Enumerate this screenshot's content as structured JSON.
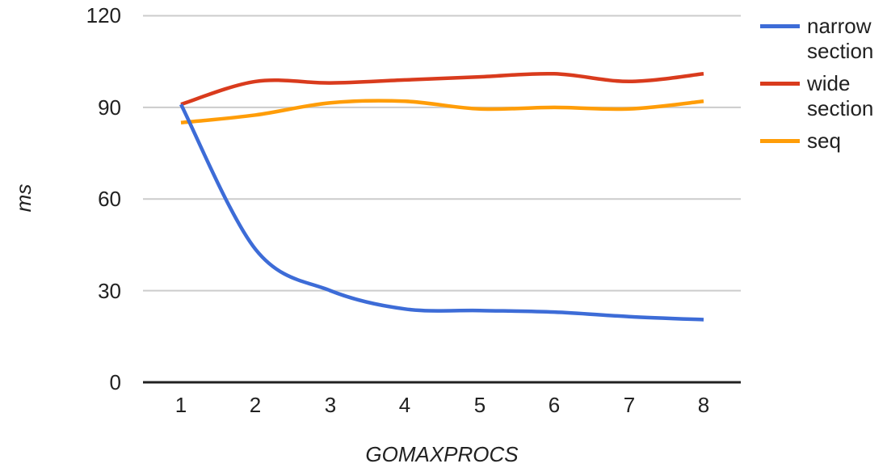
{
  "chart_data": {
    "type": "line",
    "title": "",
    "xlabel": "GOMAXPROCS",
    "ylabel": "ms",
    "x": [
      1,
      2,
      3,
      4,
      5,
      6,
      7,
      8
    ],
    "series": [
      {
        "name": "narrow section",
        "color": "#3d6cd7",
        "values": [
          91,
          43.5,
          30,
          24,
          23.5,
          23,
          21.5,
          20.5
        ]
      },
      {
        "name": "wide section",
        "color": "#d93b1d",
        "values": [
          91,
          98.5,
          98,
          99,
          100,
          101,
          98.5,
          101
        ]
      },
      {
        "name": "seq",
        "color": "#ff9d08",
        "values": [
          85,
          87.5,
          91.5,
          92,
          89.5,
          90,
          89.5,
          92
        ]
      }
    ],
    "ylim": [
      0,
      120
    ],
    "yticks": [
      0,
      30,
      60,
      90,
      120
    ],
    "y_tick_labels": [
      "120",
      "90",
      "60",
      "30",
      "0"
    ],
    "x_tick_labels": [
      "1",
      "2",
      "3",
      "4",
      "5",
      "6",
      "7",
      "8"
    ],
    "grid": true,
    "legend_position": "right",
    "line_style": "smooth"
  },
  "colors": {
    "background": "#ffffff",
    "gridline": "#cccccc",
    "axis": "#212121",
    "text": "#212121"
  }
}
